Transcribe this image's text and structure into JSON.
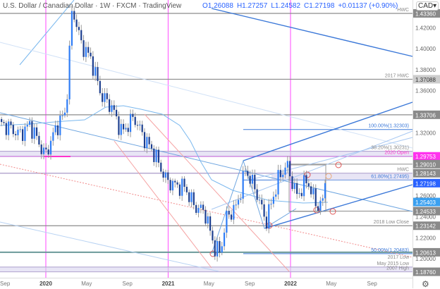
{
  "header": {
    "title": "U.S. Dollar / Canadian Dollar · 1W · FXCM · TradingView",
    "open": "O1.26088",
    "high": "H1.27257",
    "low": "L1.24582",
    "close": "C1.27198",
    "change": "+0.01137 (+0.90%)",
    "currency": "CAD"
  },
  "colors": {
    "up": "#2f7df6",
    "down": "#1d3f8f",
    "wick": "#9a9a9a",
    "year_line": "#ff66ff",
    "level": "#8c8c8c",
    "zone": "#d9d4ee",
    "ma": "#7ab8ee",
    "trend": "#3b78d8",
    "red_dash": "#f28b8b"
  },
  "chart_data": {
    "type": "candlestick",
    "symbol": "USD/CAD",
    "interval": "1W",
    "ylim": [
      1.178,
      1.437
    ],
    "y_ticks": [
      "1.42000",
      "1.40000",
      "1.38000",
      "1.36000",
      "1.32000",
      "1.26000",
      "1.24000",
      "1.22000",
      "1.20000"
    ],
    "x_ticks": [
      "Sep",
      "2020",
      "May",
      "Sep",
      "2021",
      "May",
      "Sep",
      "2022",
      "May",
      "Sep"
    ],
    "year_separators": [
      "2020",
      "2021",
      "2022"
    ],
    "approx_close_path": [
      [
        "2019-08-15",
        1.329
      ],
      [
        "2019-09-15",
        1.325
      ],
      [
        "2019-10-15",
        1.318
      ],
      [
        "2019-11-15",
        1.328
      ],
      [
        "2019-12-30",
        1.298
      ],
      [
        "2020-02-01",
        1.325
      ],
      [
        "2020-03-01",
        1.34
      ],
      [
        "2020-03-20",
        1.44
      ],
      [
        "2020-04-15",
        1.405
      ],
      [
        "2020-05-15",
        1.39
      ],
      [
        "2020-06-15",
        1.355
      ],
      [
        "2020-07-15",
        1.345
      ],
      [
        "2020-08-15",
        1.32
      ],
      [
        "2020-09-20",
        1.335
      ],
      [
        "2020-10-20",
        1.315
      ],
      [
        "2020-11-20",
        1.3
      ],
      [
        "2020-12-25",
        1.275
      ],
      [
        "2021-01-20",
        1.27
      ],
      [
        "2021-02-20",
        1.268
      ],
      [
        "2021-03-20",
        1.25
      ],
      [
        "2021-04-20",
        1.245
      ],
      [
        "2021-05-20",
        1.21
      ],
      [
        "2021-06-05",
        1.206
      ],
      [
        "2021-06-25",
        1.24
      ],
      [
        "2021-07-25",
        1.25
      ],
      [
        "2021-08-20",
        1.285
      ],
      [
        "2021-09-20",
        1.265
      ],
      [
        "2021-10-20",
        1.235
      ],
      [
        "2021-11-25",
        1.275
      ],
      [
        "2021-12-20",
        1.29
      ],
      [
        "2022-01-20",
        1.26
      ],
      [
        "2022-02-20",
        1.275
      ],
      [
        "2022-03-20",
        1.25
      ],
      [
        "2022-04-08",
        1.254
      ],
      [
        "2022-04-15",
        1.27198
      ]
    ],
    "moving_average": "light blue line",
    "last_price": 1.27198,
    "secondary_price": 1.25403,
    "levels": [
      {
        "value": 1.4336,
        "label": "HWC",
        "badge": "1.43360",
        "style": "gray"
      },
      {
        "value": 1.37088,
        "label": "2017 HWC",
        "badge": "1.37088",
        "style": "gray"
      },
      {
        "value": 1.33706,
        "label": "",
        "badge": "1.33706",
        "style": "gray"
      },
      {
        "value": 1.32303,
        "label": "100.00%(1.32303)",
        "badge": "",
        "style": "fib"
      },
      {
        "value": 1.30231,
        "label": "38.20%(1.30231)",
        "badge": "",
        "style": "zone-top"
      },
      {
        "value": 1.29753,
        "label": "2020 Open",
        "badge": "1.29753",
        "style": "magenta"
      },
      {
        "value": 1.2901,
        "label": "",
        "badge": "1.29010",
        "style": "gray-short"
      },
      {
        "value": 1.28143,
        "label": "HWC",
        "badge": "1.28143",
        "style": "zone-top"
      },
      {
        "value": 1.27495,
        "label": "61.80%(1.27495)",
        "badge": "",
        "style": "fib"
      },
      {
        "value": 1.24533,
        "label": "",
        "badge": "1.24533",
        "style": "gray-short"
      },
      {
        "value": 1.23142,
        "label": "2018 Low Close",
        "badge": "1.23142",
        "style": "gray"
      },
      {
        "value": 1.20483,
        "label": "50.00%(1.20483)",
        "badge": "",
        "style": "fib"
      },
      {
        "value": 1.20613,
        "label": "",
        "badge": "1.20613",
        "style": "teal"
      },
      {
        "value": 1.198,
        "label": "2017 Low",
        "badge": "",
        "style": "none"
      },
      {
        "value": 1.192,
        "label": "May 2015 Low",
        "badge": "",
        "style": "zone-top"
      },
      {
        "value": 1.1876,
        "label": "2007 High",
        "badge": "1.18760",
        "style": "zone-top"
      }
    ]
  }
}
